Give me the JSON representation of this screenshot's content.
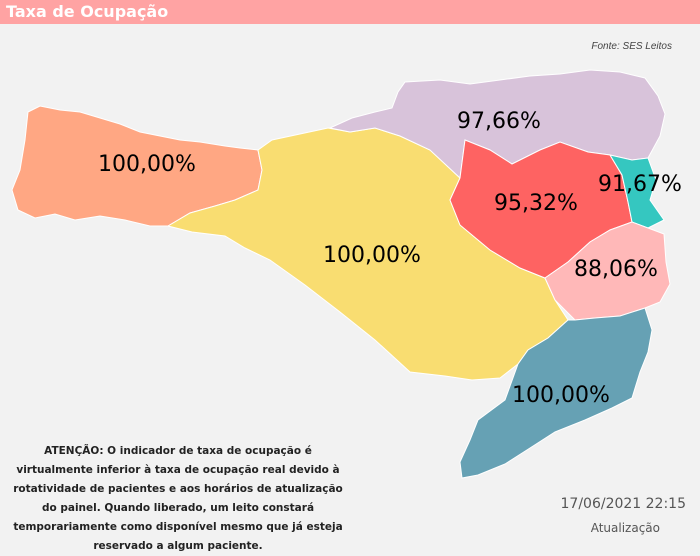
{
  "header": {
    "title": "Taxa de Ocupação",
    "background": "#ffa3a3"
  },
  "source": "Fonte: SES Leitos",
  "regions": [
    {
      "id": "oeste",
      "rate": "100,00%",
      "color": "#ffa783"
    },
    {
      "id": "meio-oeste",
      "rate": "100,00%",
      "color": "#f9dd71"
    },
    {
      "id": "norte",
      "rate": "97,66%",
      "color": "#d8c3da"
    },
    {
      "id": "vale",
      "rate": "95,32%",
      "color": "#fe6362"
    },
    {
      "id": "foz",
      "rate": "91,67%",
      "color": "#35c7c0"
    },
    {
      "id": "grande-florianopolis",
      "rate": "88,06%",
      "color": "#ffb8b8"
    },
    {
      "id": "sul",
      "rate": "100,00%",
      "color": "#66a1b4"
    }
  ],
  "notice": "ATENÇÃO: O indicador de taxa de ocupação é virtualmente inferior à taxa de ocupação real devido à rotatividade de pacientes e aos horários de atualização do painel.  Quando liberado, um leito constará temporariamente como disponível mesmo que já esteja reservado a algum paciente.",
  "update": {
    "datetime": "17/06/2021 22:15",
    "label": "Atualização"
  }
}
